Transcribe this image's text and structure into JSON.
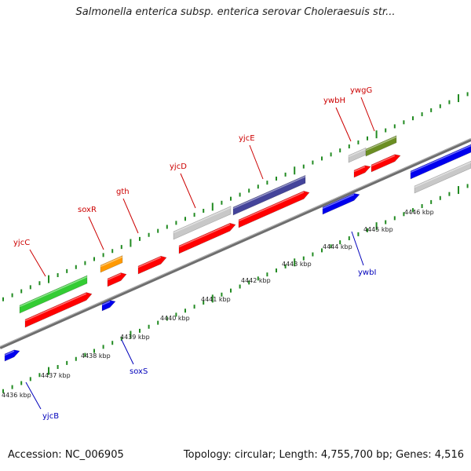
{
  "title": "Salmonella enterica subsp. enterica serovar Choleraesuis str...",
  "footer": {
    "accession": "Accession: NC_006905",
    "summary": "Topology: circular; Length: 4,755,700 bp; Genes: 4,516"
  },
  "colors": {
    "forward_gene": "#ff0000",
    "reverse_gene": "#0000ee",
    "forward_label": "#cc0000",
    "reverse_label": "#0000bb",
    "backbone": "#808080",
    "ticks": "#228b22",
    "cds_green": "#33cc33",
    "cds_orange": "#ff9900",
    "cds_grey": "#c8c8c8",
    "cds_purple": "#44449a",
    "cds_olive": "#6b8e23"
  },
  "scale_labels": [
    "4436 kbp",
    "4437 kbp",
    "4438 kbp",
    "4439 kbp",
    "4440 kbp",
    "4441 kbp",
    "4442 kbp",
    "4443 kbp",
    "4444 kbp",
    "4445 kbp",
    "4446 kbp"
  ],
  "forward_gene_labels": [
    "yjcC",
    "soxR",
    "gth",
    "yjcD",
    "yjcE",
    "ywbH",
    "ywgG"
  ],
  "reverse_gene_labels": [
    "yjcB",
    "soxS",
    "ywbI"
  ]
}
